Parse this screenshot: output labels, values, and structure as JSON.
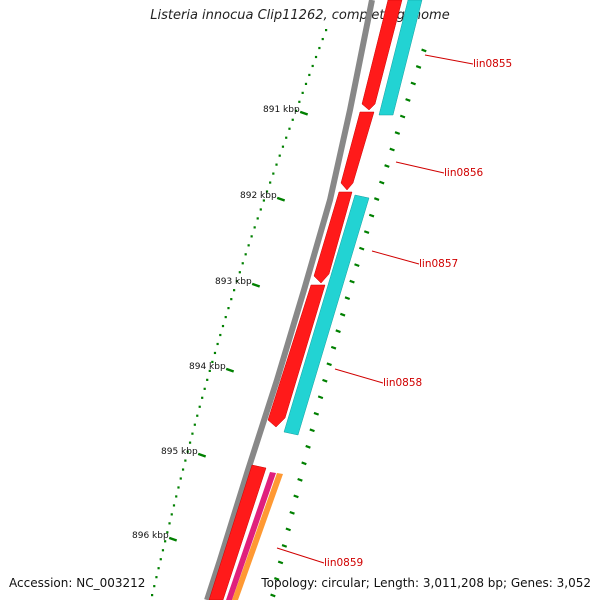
{
  "title": "Listeria innocua Clip11262, complete genome",
  "footer": {
    "accession": "Accession: NC_003212",
    "topology": "Topology: circular; Length: 3,011,208 bp; Genes: 3,052"
  },
  "scale": {
    "unit": "kbp",
    "labels": [
      "891 kbp",
      "892 kbp",
      "893 kbp",
      "894 kbp",
      "895 kbp",
      "896 kbp"
    ]
  },
  "genes": [
    "lin0855",
    "lin0856",
    "lin0857",
    "lin0858",
    "lin0859"
  ],
  "colors": {
    "backbone": "#808080",
    "cds": "#ff0000",
    "gene": "#00d0d0",
    "label": "#d00000",
    "tick": "#008000",
    "orange": "#ff9933",
    "magenta": "#e0207c"
  }
}
